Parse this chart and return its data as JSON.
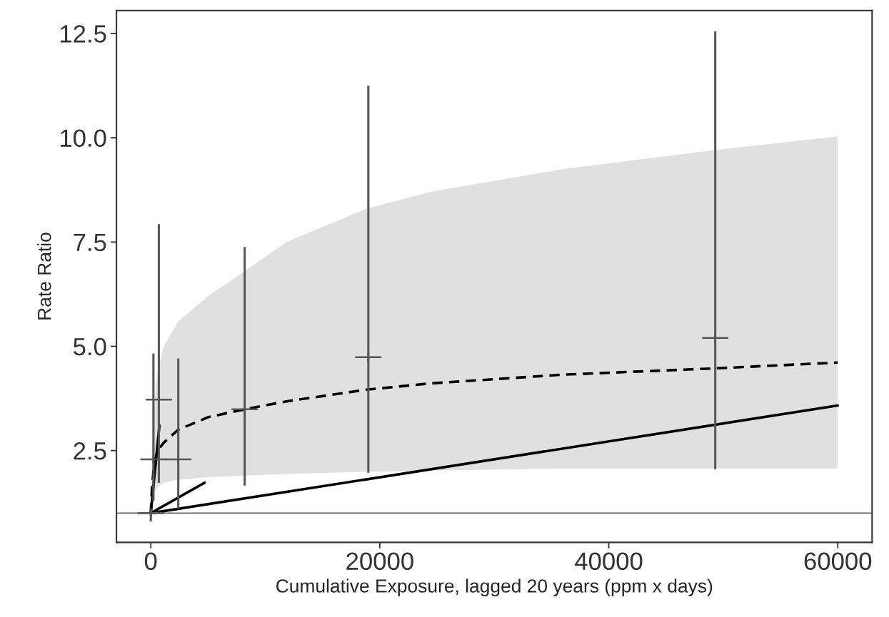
{
  "chart_data": {
    "type": "line",
    "xlabel": "Cumulative Exposure, lagged 20 years (ppm x days)",
    "ylabel": "Rate Ratio",
    "xlim": [
      -3000,
      63000
    ],
    "xticks": [
      0,
      20000,
      40000,
      60000
    ],
    "ylim": [
      0.3,
      13.05
    ],
    "yticks": [
      {
        "value": 2.5,
        "label": "2.5"
      },
      {
        "value": 5,
        "label": "5.0"
      },
      {
        "value": 7.5,
        "label": "7.5"
      },
      {
        "value": 10,
        "label": "10.0"
      },
      {
        "value": 12.5,
        "label": "12.5"
      }
    ],
    "grid": false,
    "legend": false,
    "ref_lines": [
      {
        "axis": "y",
        "value": 1,
        "color": "#666666",
        "line_style": "solid"
      }
    ],
    "series": [
      {
        "color": "#000000",
        "line_style": "dashed",
        "x": [
          0,
          100,
          300,
          600,
          1130,
          2400,
          5000,
          8200,
          11850,
          18850,
          24400,
          36000,
          49200,
          60000
        ],
        "values": [
          1.0,
          1.6,
          2.2,
          2.5,
          2.69,
          3.0,
          3.3,
          3.49,
          3.68,
          3.96,
          4.11,
          4.32,
          4.47,
          4.61
        ],
        "lower": [
          1.0,
          1.4,
          1.52,
          1.62,
          1.73,
          1.8,
          1.86,
          1.9,
          1.94,
          1.99,
          2.02,
          2.07,
          2.07,
          2.07
        ],
        "upper": [
          1.0,
          2.6,
          3.6,
          4.4,
          5.0,
          5.6,
          6.2,
          6.8,
          7.5,
          8.3,
          8.7,
          9.25,
          9.7,
          10.03
        ]
      },
      {
        "color": "#000000",
        "line_style": "solid",
        "x": [
          0,
          60000
        ],
        "values": [
          1.0,
          3.58
        ]
      },
      {
        "color": "#000000",
        "line_style": "solid",
        "x": [
          0,
          4700
        ],
        "values": [
          1.0,
          1.73
        ]
      },
      {
        "color": "#000000",
        "line_style": "solid",
        "x": [
          0,
          750
        ],
        "values": [
          1.0,
          3.1
        ]
      },
      {
        "type": "scatter",
        "color": "#555555",
        "marker": "cross",
        "x": [
          0,
          230,
          700,
          2400,
          8200,
          19000,
          49300
        ],
        "values": [
          1.0,
          2.29,
          3.72,
          2.29,
          3.49,
          4.74,
          5.2
        ],
        "errors": [
          [
            0.8,
            1.1
          ],
          [
            1.3,
            4.83
          ],
          [
            1.73,
            7.93
          ],
          [
            1.11,
            4.71
          ],
          [
            1.66,
            7.38
          ],
          [
            1.97,
            11.25
          ],
          [
            2.05,
            12.55
          ]
        ]
      }
    ]
  }
}
